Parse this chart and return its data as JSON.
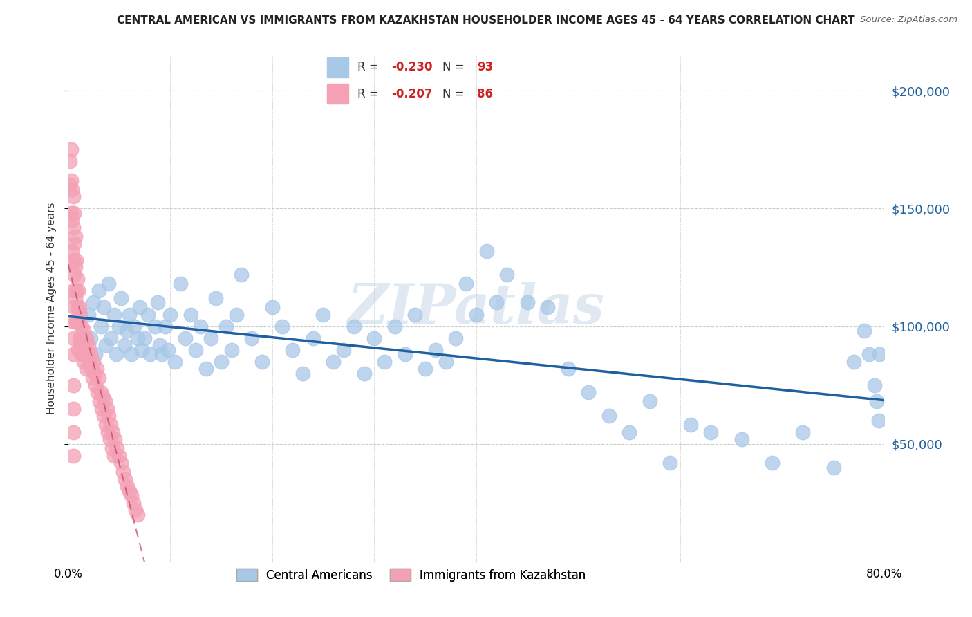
{
  "title": "CENTRAL AMERICAN VS IMMIGRANTS FROM KAZAKHSTAN HOUSEHOLDER INCOME AGES 45 - 64 YEARS CORRELATION CHART",
  "source": "Source: ZipAtlas.com",
  "ylabel": "Householder Income Ages 45 - 64 years",
  "watermark": "ZIPatlas",
  "blue_R": "-0.230",
  "blue_N": "93",
  "pink_R": "-0.207",
  "pink_N": "86",
  "blue_color": "#a8c8e8",
  "pink_color": "#f4a0b5",
  "blue_line_color": "#2060a0",
  "pink_line_color": "#c04060",
  "legend_label_blue": "Central Americans",
  "legend_label_pink": "Immigrants from Kazakhstan",
  "ytick_labels": [
    "$50,000",
    "$100,000",
    "$150,000",
    "$200,000"
  ],
  "ytick_values": [
    50000,
    100000,
    150000,
    200000
  ],
  "ymin": 0,
  "ymax": 215000,
  "xmin": 0.0,
  "xmax": 0.8,
  "blue_scatter_x": [
    0.02,
    0.022,
    0.025,
    0.027,
    0.03,
    0.032,
    0.035,
    0.037,
    0.04,
    0.042,
    0.045,
    0.047,
    0.05,
    0.052,
    0.055,
    0.057,
    0.06,
    0.062,
    0.065,
    0.068,
    0.07,
    0.072,
    0.075,
    0.078,
    0.08,
    0.085,
    0.088,
    0.09,
    0.092,
    0.095,
    0.098,
    0.1,
    0.105,
    0.11,
    0.115,
    0.12,
    0.125,
    0.13,
    0.135,
    0.14,
    0.145,
    0.15,
    0.155,
    0.16,
    0.165,
    0.17,
    0.18,
    0.19,
    0.2,
    0.21,
    0.22,
    0.23,
    0.24,
    0.25,
    0.26,
    0.27,
    0.28,
    0.29,
    0.3,
    0.31,
    0.32,
    0.33,
    0.34,
    0.35,
    0.36,
    0.37,
    0.38,
    0.39,
    0.4,
    0.41,
    0.42,
    0.43,
    0.45,
    0.47,
    0.49,
    0.51,
    0.53,
    0.55,
    0.57,
    0.59,
    0.61,
    0.63,
    0.66,
    0.69,
    0.72,
    0.75,
    0.77,
    0.78,
    0.785,
    0.79,
    0.792,
    0.794,
    0.795
  ],
  "blue_scatter_y": [
    105000,
    95000,
    110000,
    88000,
    115000,
    100000,
    108000,
    92000,
    118000,
    95000,
    105000,
    88000,
    100000,
    112000,
    92000,
    98000,
    105000,
    88000,
    100000,
    95000,
    108000,
    90000,
    95000,
    105000,
    88000,
    100000,
    110000,
    92000,
    88000,
    100000,
    90000,
    105000,
    85000,
    118000,
    95000,
    105000,
    90000,
    100000,
    82000,
    95000,
    112000,
    85000,
    100000,
    90000,
    105000,
    122000,
    95000,
    85000,
    108000,
    100000,
    90000,
    80000,
    95000,
    105000,
    85000,
    90000,
    100000,
    80000,
    95000,
    85000,
    100000,
    88000,
    105000,
    82000,
    90000,
    85000,
    95000,
    118000,
    105000,
    132000,
    110000,
    122000,
    110000,
    108000,
    82000,
    72000,
    62000,
    55000,
    68000,
    42000,
    58000,
    55000,
    52000,
    42000,
    55000,
    40000,
    85000,
    98000,
    88000,
    75000,
    68000,
    60000,
    88000
  ],
  "pink_scatter_x": [
    0.002,
    0.002,
    0.003,
    0.003,
    0.003,
    0.004,
    0.004,
    0.004,
    0.005,
    0.005,
    0.005,
    0.005,
    0.005,
    0.006,
    0.006,
    0.006,
    0.006,
    0.007,
    0.007,
    0.007,
    0.008,
    0.008,
    0.008,
    0.009,
    0.009,
    0.01,
    0.01,
    0.01,
    0.011,
    0.011,
    0.012,
    0.012,
    0.013,
    0.013,
    0.014,
    0.015,
    0.015,
    0.016,
    0.017,
    0.018,
    0.018,
    0.019,
    0.02,
    0.021,
    0.022,
    0.023,
    0.024,
    0.025,
    0.026,
    0.027,
    0.028,
    0.029,
    0.03,
    0.031,
    0.032,
    0.033,
    0.034,
    0.035,
    0.036,
    0.037,
    0.038,
    0.039,
    0.04,
    0.041,
    0.042,
    0.043,
    0.044,
    0.045,
    0.046,
    0.048,
    0.05,
    0.052,
    0.054,
    0.056,
    0.058,
    0.06,
    0.062,
    0.064,
    0.066,
    0.068,
    0.005,
    0.005,
    0.005,
    0.005,
    0.005,
    0.005
  ],
  "pink_scatter_y": [
    170000,
    160000,
    175000,
    162000,
    148000,
    158000,
    145000,
    132000,
    155000,
    142000,
    128000,
    115000,
    102000,
    148000,
    135000,
    122000,
    108000,
    138000,
    125000,
    112000,
    128000,
    115000,
    102000,
    120000,
    108000,
    115000,
    102000,
    90000,
    108000,
    95000,
    105000,
    92000,
    100000,
    88000,
    95000,
    98000,
    85000,
    92000,
    88000,
    95000,
    82000,
    88000,
    92000,
    85000,
    88000,
    82000,
    78000,
    85000,
    80000,
    75000,
    82000,
    72000,
    78000,
    68000,
    72000,
    65000,
    70000,
    62000,
    68000,
    58000,
    65000,
    55000,
    62000,
    52000,
    58000,
    48000,
    55000,
    45000,
    52000,
    48000,
    45000,
    42000,
    38000,
    35000,
    32000,
    30000,
    28000,
    25000,
    22000,
    20000,
    95000,
    88000,
    75000,
    65000,
    55000,
    45000
  ]
}
